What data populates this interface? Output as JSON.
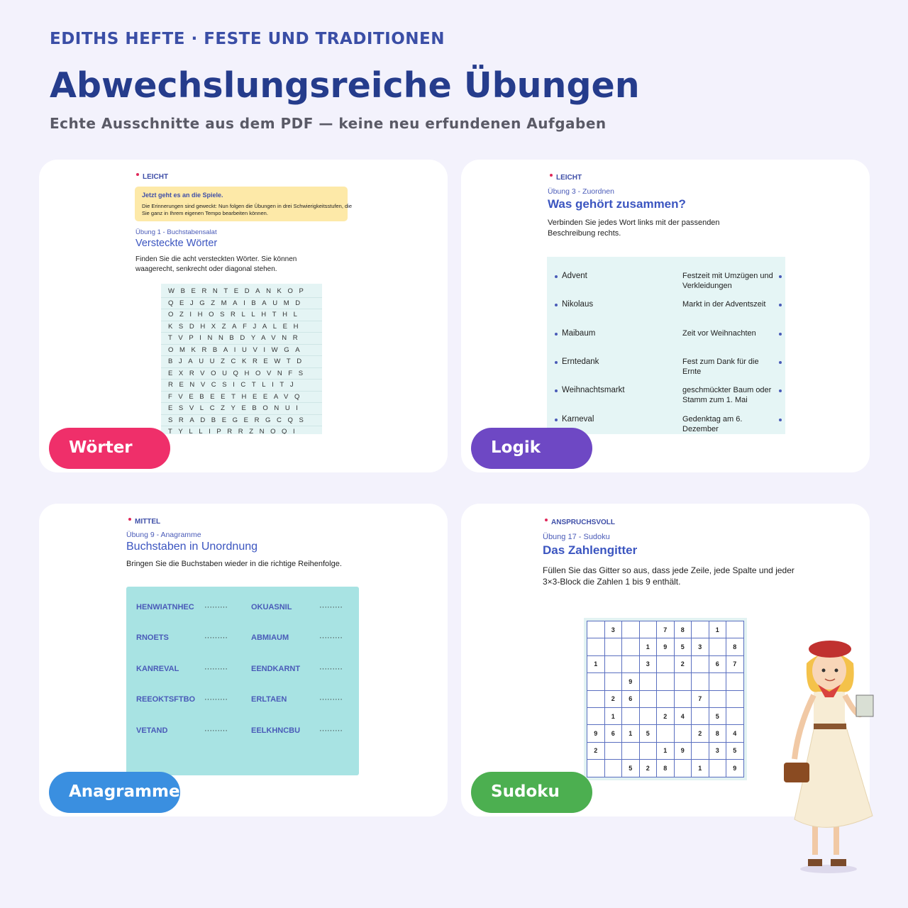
{
  "header": {
    "eyebrow": "EDITHS HEFTE · FESTE UND TRADITIONEN",
    "title": "Abwechslungsreiche Übungen",
    "subtitle": "Echte Ausschnitte aus dem PDF — keine neu erfundenen Aufgaben"
  },
  "cards": [
    {
      "level": "LEICHT",
      "note_title": "Jetzt geht es an die Spiele.",
      "note_text": "Die Erinnerungen sind geweckt: Nun folgen die Übungen in drei Schwierigkeitsstufen, die Sie ganz in Ihrem eigenen Tempo bearbeiten können.",
      "exercise": "Übung 1 - Buchstabensalat",
      "title": "Versteckte Wörter",
      "instructions": "Finden Sie die acht versteckten Wörter. Sie können waagerecht, senkrecht oder diagonal stehen.",
      "grid": [
        "WBERNTEDANKOP",
        "QEJGZMAIBAUMD",
        "OZIHOSRLLHTHL",
        "KSDHXZAFJALEH",
        "TVPINNBDYAVNR",
        "OMKRBAIUVIWGA",
        "BJAUUZCKREWTD",
        "EXRVOUQHOVNFS",
        "RENVCSICTLITJ",
        "FVEBEETHEEAVQ",
        "ESVLCZYEBONUI",
        "SRADBEGERGCQS",
        "TYLLIPRRZNOQI"
      ],
      "badge": "Wörter"
    },
    {
      "level": "LEICHT",
      "exercise": "Übung 3 - Zuordnen",
      "title": "Was gehört zusammen?",
      "instructions": "Verbinden Sie jedes Wort links mit der passenden Beschreibung rechts.",
      "pairs": [
        [
          "Advent",
          "Festzeit mit Umzügen und Verkleidungen"
        ],
        [
          "Nikolaus",
          "Markt in der Adventszeit"
        ],
        [
          "Maibaum",
          "Zeit vor Weihnachten"
        ],
        [
          "Erntedank",
          "Fest zum Dank für die Ernte"
        ],
        [
          "Weihnachtsmarkt",
          "geschmückter Baum oder Stamm zum 1. Mai"
        ],
        [
          "Karneval",
          "Gedenktag am 6. Dezember"
        ]
      ],
      "badge": "Logik"
    },
    {
      "level": "MITTEL",
      "exercise": "Übung 9 - Anagramme",
      "title": "Buchstaben in Unordnung",
      "instructions": "Bringen Sie die Buchstaben wieder in die richtige Reihenfolge.",
      "blank": "·········",
      "pairs": [
        [
          "HENWIATNHEC",
          "OKUASNIL"
        ],
        [
          "RNOETS",
          "ABMIAUM"
        ],
        [
          "KANREVAL",
          "EENDKARNT"
        ],
        [
          "REEOKTSFTBO",
          "ERLTAEN"
        ],
        [
          "VETAND",
          "EELKHNCBU"
        ]
      ],
      "badge": "Anagramme"
    },
    {
      "level": "ANSPRUCHSVOLL",
      "exercise": "Übung 17 - Sudoku",
      "title": "Das Zahlengitter",
      "instructions": "Füllen Sie das Gitter so aus, dass jede Zeile, jede Spalte und jeder 3×3-Block die Zahlen 1 bis 9 enthält.",
      "grid": [
        [
          null,
          3,
          null,
          null,
          7,
          8,
          null,
          1,
          null
        ],
        [
          null,
          null,
          null,
          1,
          9,
          5,
          3,
          null,
          8
        ],
        [
          1,
          null,
          null,
          3,
          null,
          2,
          null,
          6,
          7
        ],
        [
          null,
          null,
          9,
          null,
          null,
          null,
          null,
          null,
          null
        ],
        [
          null,
          2,
          6,
          null,
          null,
          null,
          7,
          null,
          null
        ],
        [
          null,
          1,
          null,
          null,
          2,
          4,
          null,
          5,
          null
        ],
        [
          9,
          6,
          1,
          5,
          null,
          null,
          2,
          8,
          4
        ],
        [
          2,
          null,
          null,
          null,
          1,
          9,
          null,
          3,
          5
        ],
        [
          null,
          null,
          5,
          2,
          8,
          null,
          1,
          null,
          9
        ]
      ],
      "badge": "Sudoku"
    }
  ]
}
